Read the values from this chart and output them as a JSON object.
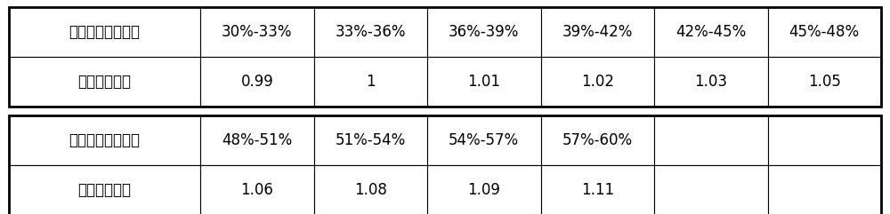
{
  "table1": {
    "rows": [
      [
        "数据所在校正区间",
        "30%-33%",
        "33%-36%",
        "36%-39%",
        "39%-42%",
        "42%-45%",
        "45%-48%"
      ],
      [
        "所乘校正系数",
        "0.99",
        "1",
        "1.01",
        "1.02",
        "1.03",
        "1.05"
      ]
    ]
  },
  "table2": {
    "rows": [
      [
        "数据所在校正区间",
        "48%-51%",
        "51%-54%",
        "54%-57%",
        "57%-60%",
        "",
        ""
      ],
      [
        "所乘校正系数",
        "1.06",
        "1.08",
        "1.09",
        "1.11",
        "",
        ""
      ]
    ]
  },
  "bg_color": "#ffffff",
  "border_color": "#000000",
  "text_color": "#000000",
  "font_size": 12,
  "outer_lw": 2.0,
  "inner_lw": 0.8
}
